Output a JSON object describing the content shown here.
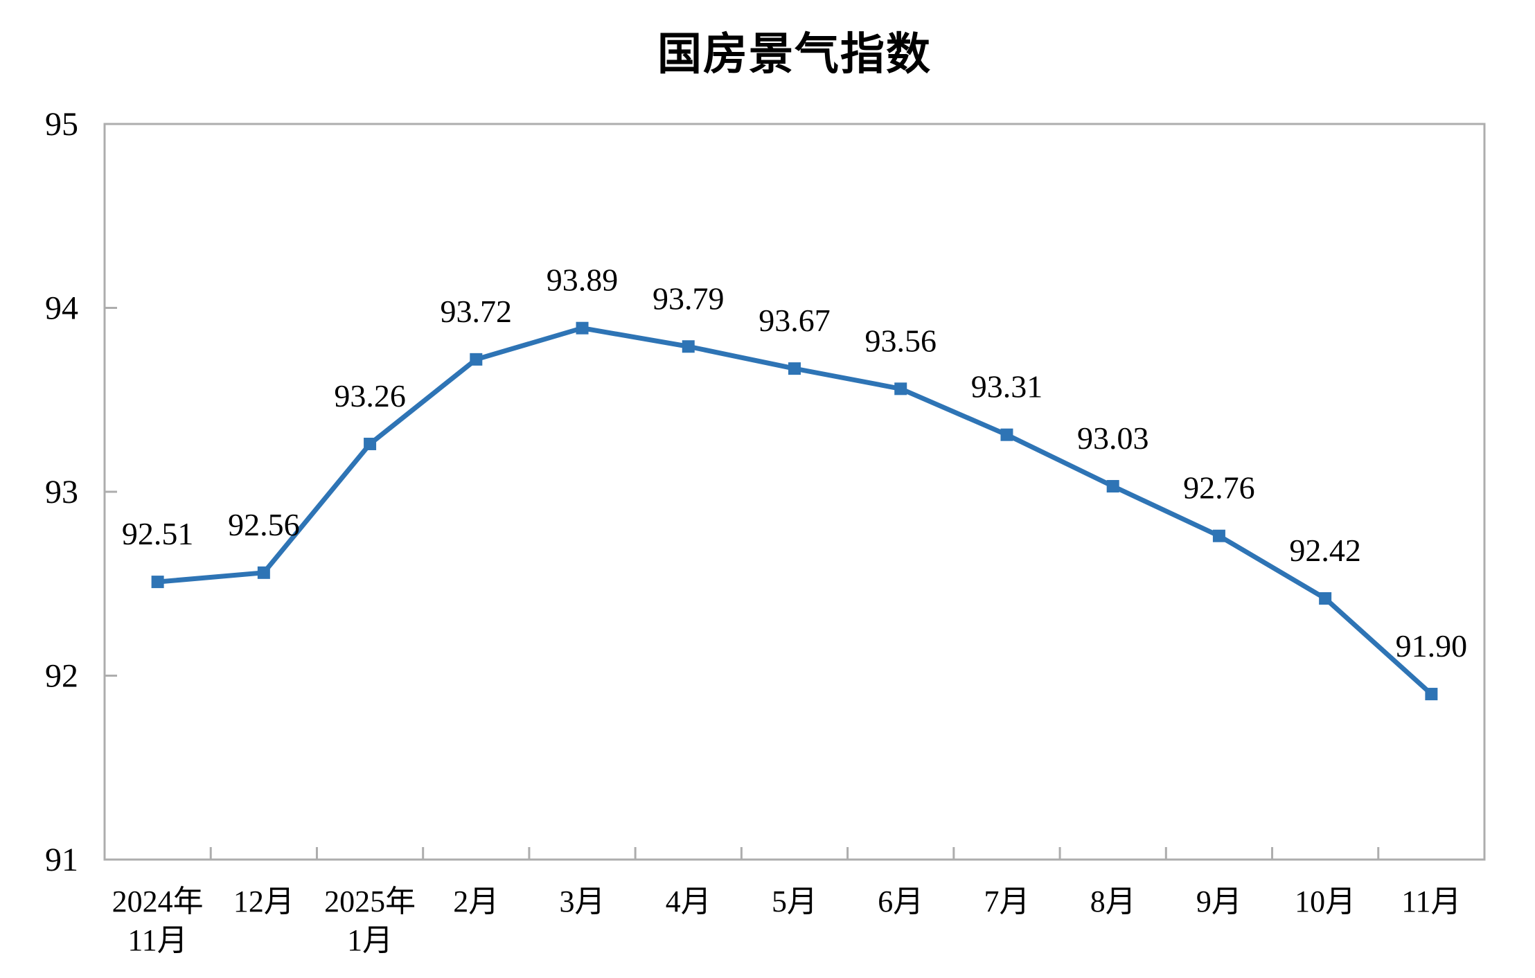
{
  "chart_data": {
    "type": "line",
    "title": "国房景气指数",
    "series_name": "国房景气指数",
    "categories": [
      "2024年\n11月",
      "12月",
      "2025年\n1月",
      "2月",
      "3月",
      "4月",
      "5月",
      "6月",
      "7月",
      "8月",
      "9月",
      "10月",
      "11月"
    ],
    "values": [
      92.51,
      92.56,
      93.26,
      93.72,
      93.89,
      93.79,
      93.67,
      93.56,
      93.31,
      93.03,
      92.76,
      92.42,
      91.9
    ],
    "data_labels": [
      "92.51",
      "92.56",
      "93.26",
      "93.72",
      "93.89",
      "93.79",
      "93.67",
      "93.56",
      "93.31",
      "93.03",
      "92.76",
      "92.42",
      "91.90"
    ],
    "xlabel": "",
    "ylabel": "",
    "ylim": [
      91,
      95
    ],
    "y_ticks": [
      91,
      92,
      93,
      94,
      95
    ],
    "y_tick_labels": [
      "91",
      "92",
      "93",
      "94",
      "95"
    ],
    "grid": false,
    "legend_position": "none",
    "marker_shape": "square",
    "line_color": "#2E74B5",
    "axis_color": "#ADADAD",
    "text_color": "#000000",
    "background_color": "#FFFFFF"
  }
}
